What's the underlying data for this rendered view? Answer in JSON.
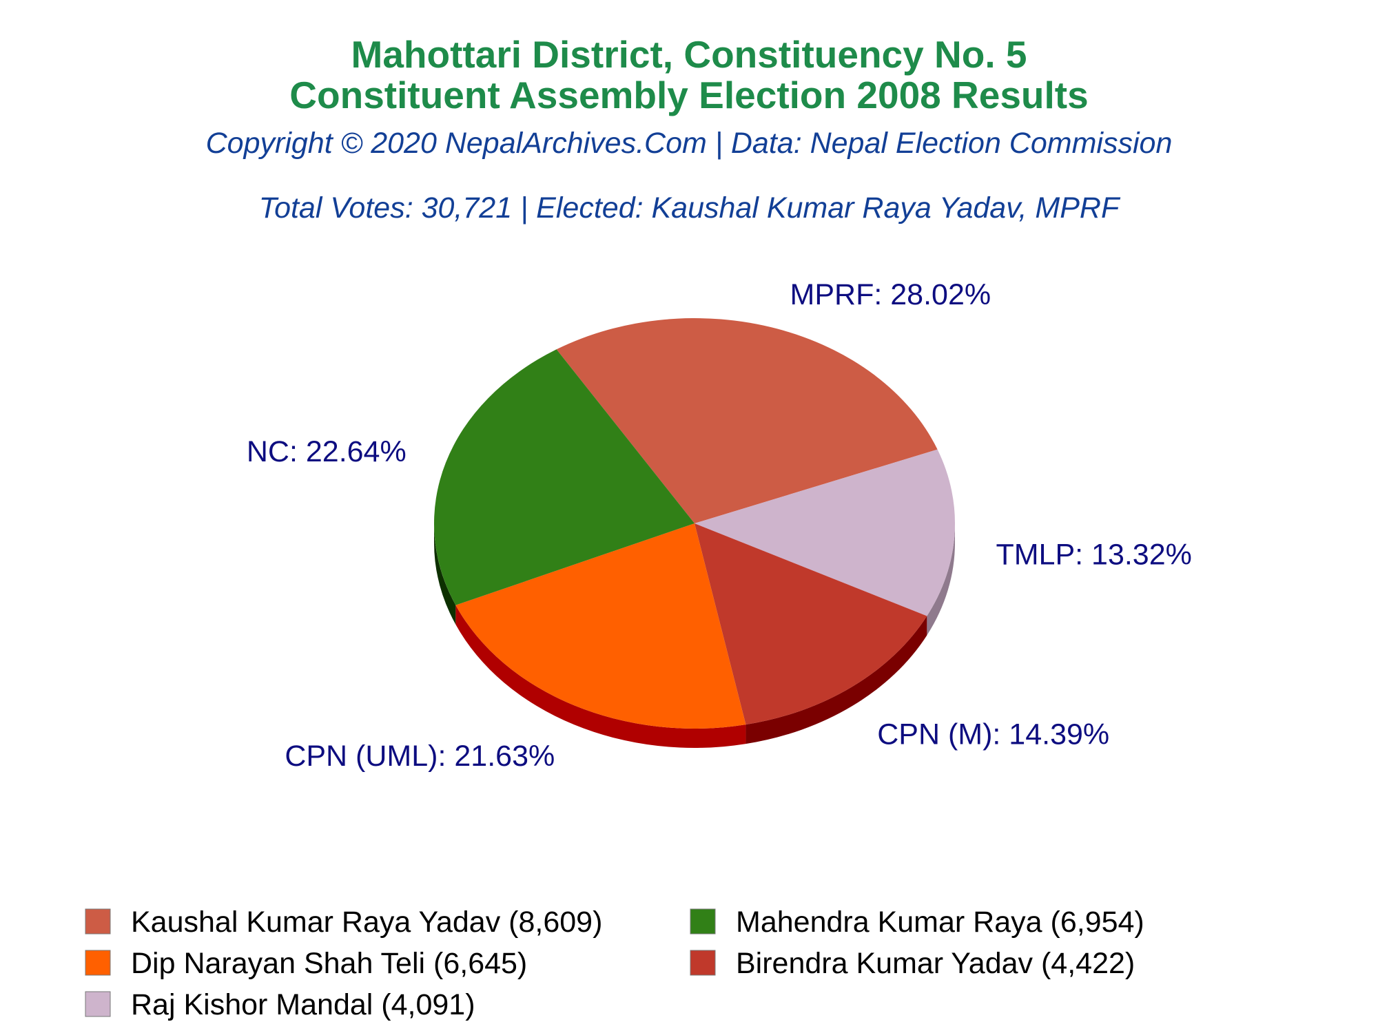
{
  "title_lines": [
    "Mahottari District, Constituency No. 5",
    "Constituent Assembly Election 2008 Results"
  ],
  "subtitle_lines": [
    "Copyright © 2020 NepalArchives.Com | Data: Nepal Election Commission",
    "Total Votes: 30,721 | Elected: Kaushal Kumar Raya Yadav, MPRF"
  ],
  "colors": {
    "title": "#1e8b4a",
    "subtitle": "#123f96",
    "label": "#0d0d80"
  },
  "chart_data": {
    "type": "pie",
    "style": "3d",
    "start_angle_deg": -122,
    "slices": [
      {
        "party": "MPRF",
        "candidate": "Kaushal Kumar Raya Yadav",
        "votes": 8609,
        "label": "MPRF: 28.02%",
        "legend": "Kaushal Kumar Raya Yadav (8,609)",
        "color": "#cd5c45",
        "side_color": "#8b2e1e"
      },
      {
        "party": "TMLP",
        "candidate": "Raj Kishor Mandal",
        "votes": 4091,
        "label": "TMLP: 13.32%",
        "legend": "Raj Kishor Mandal (4,091)",
        "color": "#ceb4cc",
        "side_color": "#8f7a8d"
      },
      {
        "party": "CPN (M)",
        "candidate": "Birendra Kumar Yadav",
        "votes": 4422,
        "label": "CPN (M): 14.39%",
        "legend": "Birendra Kumar Yadav (4,422)",
        "color": "#c0392b",
        "side_color": "#7a0000"
      },
      {
        "party": "CPN (UML)",
        "candidate": "Dip Narayan Shah Teli",
        "votes": 6645,
        "label": "CPN (UML): 21.63%",
        "legend": "Dip Narayan Shah Teli (6,645)",
        "color": "#ff6000",
        "side_color": "#b00000"
      },
      {
        "party": "NC",
        "candidate": "Mahendra Kumar Raya",
        "votes": 6954,
        "label": "NC: 22.64%",
        "legend": "Mahendra Kumar Raya (6,954)",
        "color": "#318017",
        "side_color": "#0d3000"
      }
    ],
    "legend_order": [
      0,
      4,
      3,
      2,
      1
    ],
    "legend_placement": "bottom"
  }
}
